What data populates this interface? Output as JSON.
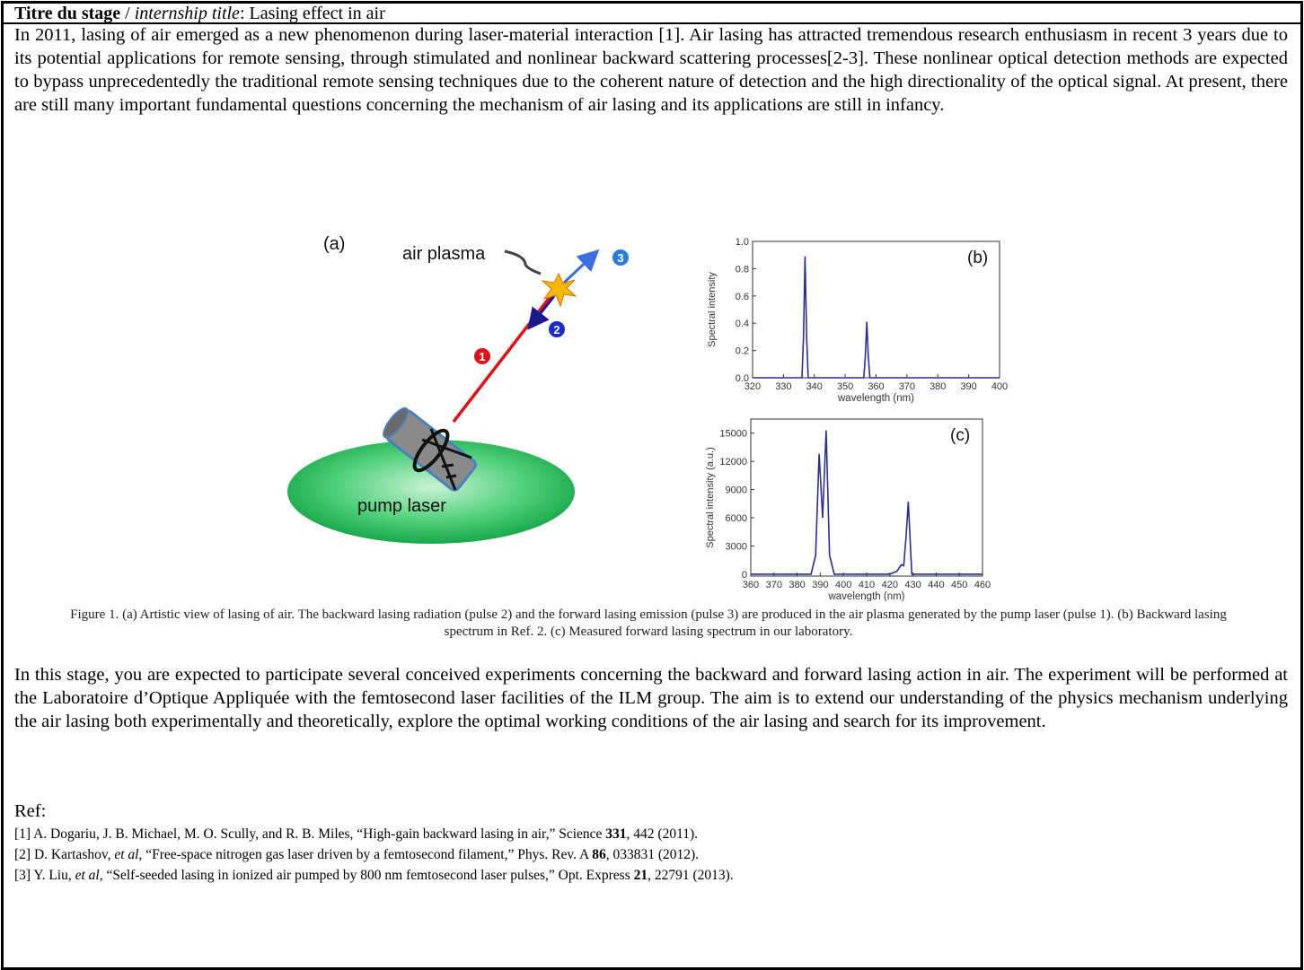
{
  "header": {
    "title_label": "Titre du stage",
    "separator": "/",
    "title_label_en": "internship title",
    "title": ": Lasing effect in air"
  },
  "intro": "In 2011, lasing of air emerged as a new phenomenon during laser-material interaction [1]. Air lasing has attracted tremendous research enthusiasm in recent 3 years due to its potential applications for remote sensing, through stimulated and nonlinear backward scattering processes[2-3]. These nonlinear optical detection methods are expected to bypass unprecedentedly the traditional remote sensing techniques due to the coherent nature of detection and the high directionality of the optical signal. At present, there are still many important fundamental questions concerning the mechanism of air lasing and its applications are still in infancy.",
  "figure": {
    "panel_a": {
      "label": "(a)",
      "plasma_label": "air plasma",
      "pump_label": "pump laser",
      "pulse_1": "1",
      "pulse_2": "2",
      "pulse_3": "3"
    },
    "panel_b": {
      "type": "line",
      "label": "(b)",
      "xlabel": "wavelength (nm)",
      "ylabel": "Spectral intensity",
      "color": "#2b2f8f",
      "x": [
        320,
        336,
        336.5,
        337,
        337.5,
        338,
        356,
        356.5,
        357,
        357.5,
        358,
        400
      ],
      "values": [
        0,
        0,
        0.3,
        0.89,
        0.3,
        0,
        0,
        0.15,
        0.41,
        0.15,
        0,
        0
      ],
      "xlim": [
        320,
        400
      ],
      "ylim": [
        0,
        1
      ],
      "xticks": [
        320,
        330,
        340,
        350,
        360,
        370,
        380,
        390,
        400
      ],
      "yticks": [
        {
          "value": 0,
          "label": "0.0"
        },
        0.2,
        0.4,
        0.6,
        0.8,
        {
          "value": 1,
          "label": "1.0"
        }
      ]
    },
    "panel_c": {
      "type": "line",
      "label": "(c)",
      "xlabel": "wavelength (nm)",
      "ylabel": "Spectral intensity (a.u.)",
      "color": "#2b2f8f",
      "x": [
        360,
        386,
        388,
        389.5,
        391,
        392.5,
        394,
        396,
        420,
        423,
        425,
        426,
        427,
        428,
        429.5,
        460
      ],
      "values": [
        0,
        0,
        2000,
        12800,
        6000,
        15300,
        2000,
        0,
        0,
        300,
        1000,
        900,
        4000,
        7700,
        0,
        0
      ],
      "xlim": [
        360,
        460
      ],
      "ylim": [
        -200,
        16500
      ],
      "xticks": [
        360,
        370,
        380,
        390,
        400,
        410,
        420,
        430,
        440,
        450,
        460
      ],
      "yticks": [
        0,
        3000,
        6000,
        9000,
        12000,
        15000
      ]
    },
    "caption": "Figure 1. (a) Artistic view of lasing of air. The backward lasing radiation (pulse 2) and the forward lasing emission (pulse 3) are produced in the air plasma generated by the pump laser (pulse 1). (b) Backward lasing spectrum in Ref. 2. (c) Measured forward lasing spectrum in our laboratory."
  },
  "body": "In this stage, you are expected to participate several conceived experiments concerning the backward and forward lasing action in air. The experiment will be performed at the Laboratoire d’Optique Appliquée with the femtosecond laser facilities of the ILM group. The aim is to extend our understanding of the physics mechanism underlying the air lasing both experimentally and theoretically, explore the optimal working conditions of the air lasing and search for its improvement.",
  "references": {
    "heading": "Ref:",
    "items": [
      [
        "[1] A. Dogariu, J. B. Michael, M. O. Scully, and R. B. Miles, “High-gain backward lasing in air,” Science ",
        "331",
        ", 442 (2011)."
      ],
      [
        "[2] D. Kartashov, ",
        "et al",
        ", “Free-space nitrogen gas laser driven by a femtosecond filament,” Phys. Rev. A ",
        "86",
        ", 033831 (2012)."
      ],
      [
        "[3] Y. Liu, ",
        "et al",
        ", “Self-seeded lasing in ionized air pumped by 800 nm femtosecond laser pulses,” Opt. Express ",
        "21",
        ", 22791 (2013)."
      ]
    ]
  }
}
